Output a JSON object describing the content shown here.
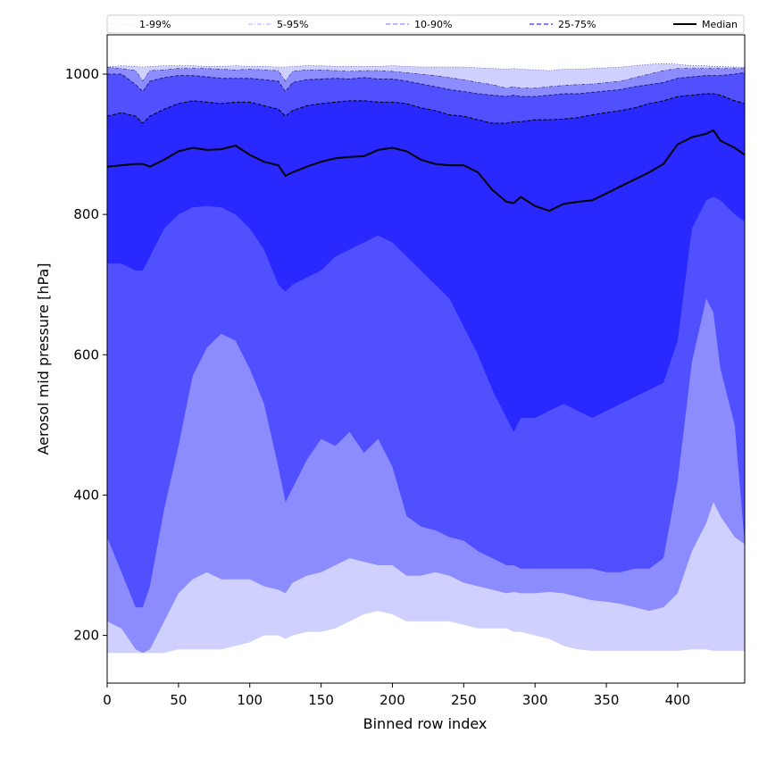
{
  "chart_data": {
    "type": "area",
    "xlabel": "Binned row index",
    "ylabel": "Aerosol mid pressure [hPa]",
    "xlim": [
      0,
      447
    ],
    "ylim": [
      132,
      1056
    ],
    "xticks": [
      0,
      50,
      100,
      150,
      200,
      250,
      300,
      350,
      400
    ],
    "yticks": [
      200,
      400,
      600,
      800,
      1000
    ],
    "grid": false,
    "legend_position": "top",
    "legend": [
      {
        "label": "1-99%",
        "style": "dotted",
        "color": "#d0d0ff"
      },
      {
        "label": "5-95%",
        "style": "dashdot",
        "color": "#8c8cff"
      },
      {
        "label": "10-90%",
        "style": "dashed",
        "color": "#8c8cff"
      },
      {
        "label": "25-75%",
        "style": "dashed",
        "color": "#5050ff"
      },
      {
        "label": "Median",
        "style": "solid",
        "color": "#000000"
      }
    ],
    "x": [
      0,
      10,
      20,
      25,
      30,
      40,
      50,
      60,
      70,
      80,
      90,
      100,
      110,
      120,
      125,
      130,
      140,
      150,
      160,
      170,
      180,
      190,
      200,
      210,
      220,
      230,
      240,
      250,
      260,
      270,
      280,
      285,
      290,
      300,
      310,
      320,
      330,
      340,
      350,
      360,
      370,
      380,
      390,
      400,
      410,
      420,
      425,
      430,
      440,
      447
    ],
    "series": [
      {
        "name": "1-99%",
        "lower": [
          175,
          175,
          175,
          175,
          175,
          175,
          180,
          180,
          180,
          180,
          185,
          190,
          200,
          200,
          195,
          200,
          205,
          205,
          210,
          220,
          230,
          235,
          230,
          220,
          220,
          220,
          220,
          215,
          210,
          210,
          210,
          205,
          205,
          200,
          195,
          185,
          180,
          178,
          178,
          178,
          178,
          178,
          178,
          178,
          180,
          180,
          178,
          178,
          178,
          178
        ],
        "upper": [
          1010,
          1012,
          1011,
          1010,
          1011,
          1012,
          1012,
          1012,
          1011,
          1011,
          1012,
          1011,
          1011,
          1010,
          1010,
          1011,
          1012,
          1012,
          1011,
          1011,
          1011,
          1011,
          1012,
          1011,
          1010,
          1010,
          1010,
          1010,
          1009,
          1008,
          1007,
          1008,
          1007,
          1006,
          1005,
          1007,
          1007,
          1008,
          1009,
          1010,
          1012,
          1014,
          1015,
          1014,
          1012,
          1012,
          1011,
          1011,
          1010,
          1010
        ]
      },
      {
        "name": "5-95%",
        "lower": [
          220,
          210,
          180,
          175,
          180,
          220,
          260,
          280,
          290,
          280,
          280,
          280,
          270,
          265,
          260,
          275,
          285,
          290,
          300,
          310,
          305,
          300,
          300,
          285,
          285,
          290,
          285,
          275,
          270,
          265,
          260,
          262,
          260,
          260,
          262,
          260,
          255,
          250,
          248,
          245,
          240,
          235,
          240,
          260,
          320,
          360,
          390,
          370,
          340,
          330
        ],
        "upper": [
          1010,
          1008,
          1005,
          990,
          1005,
          1006,
          1008,
          1008,
          1008,
          1007,
          1006,
          1007,
          1006,
          1005,
          990,
          1004,
          1006,
          1006,
          1005,
          1004,
          1005,
          1005,
          1004,
          1002,
          1000,
          998,
          995,
          992,
          988,
          985,
          980,
          982,
          980,
          980,
          982,
          984,
          985,
          986,
          988,
          990,
          995,
          1000,
          1005,
          1008,
          1008,
          1008,
          1008,
          1008,
          1008,
          1008
        ]
      },
      {
        "name": "10-90%",
        "lower": [
          340,
          290,
          240,
          240,
          270,
          380,
          470,
          570,
          610,
          630,
          620,
          580,
          530,
          440,
          390,
          410,
          450,
          480,
          470,
          490,
          460,
          480,
          440,
          370,
          355,
          350,
          340,
          335,
          320,
          310,
          300,
          300,
          295,
          295,
          295,
          295,
          295,
          295,
          290,
          290,
          295,
          295,
          310,
          420,
          590,
          680,
          660,
          580,
          500,
          330
        ],
        "upper": [
          1000,
          1000,
          985,
          975,
          990,
          995,
          998,
          998,
          996,
          994,
          994,
          994,
          992,
          990,
          975,
          988,
          992,
          993,
          994,
          993,
          995,
          993,
          993,
          990,
          986,
          982,
          978,
          975,
          972,
          970,
          968,
          970,
          968,
          968,
          970,
          972,
          972,
          974,
          976,
          978,
          982,
          985,
          988,
          994,
          996,
          998,
          998,
          998,
          1000,
          1002
        ]
      },
      {
        "name": "25-75%",
        "lower": [
          730,
          730,
          720,
          720,
          740,
          780,
          800,
          810,
          812,
          810,
          800,
          780,
          750,
          700,
          690,
          700,
          710,
          720,
          740,
          750,
          760,
          770,
          760,
          740,
          720,
          700,
          680,
          640,
          600,
          550,
          510,
          490,
          510,
          510,
          520,
          530,
          520,
          510,
          520,
          530,
          540,
          550,
          560,
          620,
          780,
          820,
          825,
          820,
          800,
          790
        ],
        "upper": [
          940,
          945,
          940,
          930,
          940,
          950,
          958,
          962,
          960,
          958,
          960,
          960,
          955,
          950,
          940,
          948,
          955,
          958,
          960,
          962,
          962,
          960,
          960,
          958,
          952,
          948,
          942,
          940,
          935,
          930,
          930,
          932,
          932,
          935,
          935,
          936,
          938,
          942,
          945,
          948,
          952,
          958,
          962,
          968,
          970,
          972,
          972,
          970,
          962,
          958
        ]
      },
      {
        "name": "Median",
        "values": [
          868,
          870,
          872,
          872,
          868,
          878,
          890,
          895,
          892,
          893,
          898,
          885,
          875,
          870,
          855,
          860,
          868,
          875,
          880,
          882,
          883,
          892,
          895,
          890,
          878,
          872,
          870,
          870,
          860,
          835,
          818,
          816,
          825,
          812,
          805,
          815,
          818,
          820,
          830,
          840,
          850,
          860,
          872,
          900,
          910,
          915,
          920,
          905,
          895,
          885
        ]
      }
    ]
  },
  "colors": {
    "band_1_99": "#d0d0ff",
    "band_5_95": "#8c8cff",
    "band_10_90": "#5050ff",
    "band_25_75": "#2828ff",
    "median": "#000000"
  }
}
